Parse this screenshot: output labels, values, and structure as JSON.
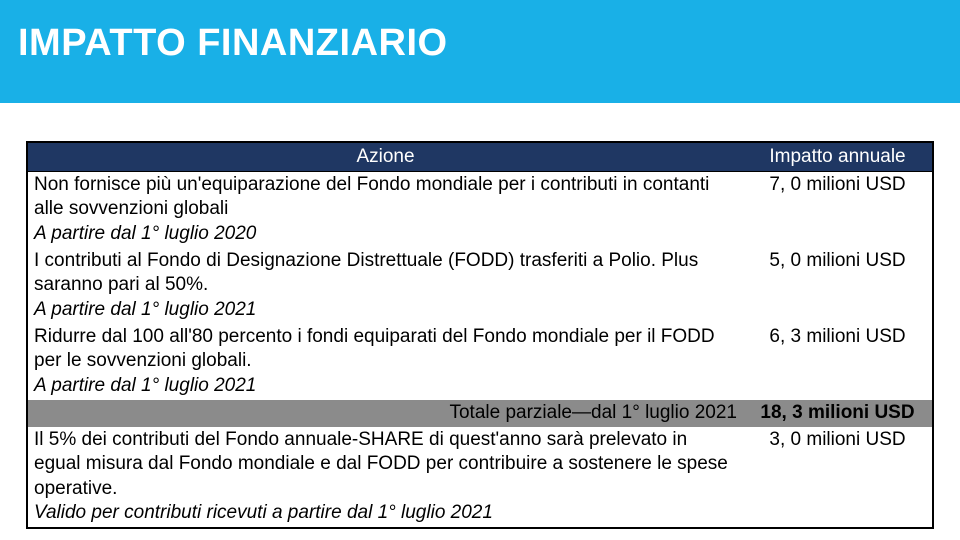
{
  "colors": {
    "header_band_bg": "#19b0e7",
    "title_text": "#ffffff",
    "table_header_bg": "#1f3763",
    "table_header_text": "#ffffff",
    "subtotal_bg": "#8b8b8b"
  },
  "title": "IMPATTO FINANZIARIO",
  "table": {
    "columns": [
      "Azione",
      "Impatto annuale"
    ],
    "rows": [
      {
        "action": "Non fornisce più un'equiparazione del Fondo mondiale per i contributi in contanti alle sovvenzioni globali",
        "note": "A partire dal 1° luglio 2020",
        "impact": "7, 0 milioni USD"
      },
      {
        "action": "I contributi al Fondo di Designazione Distrettuale (FODD) trasferiti a Polio. Plus saranno pari al 50%.",
        "note": "A partire dal 1° luglio 2021",
        "impact": "5, 0 milioni USD"
      },
      {
        "action": "Ridurre dal 100 all'80 percento i fondi equiparati del Fondo mondiale per il FODD per le sovvenzioni globali.",
        "note": "A partire dal 1° luglio 2021",
        "impact": "6, 3 milioni USD"
      }
    ],
    "subtotal": {
      "label": "Totale parziale—dal 1° luglio 2021",
      "impact": "18, 3 milioni USD"
    },
    "after_subtotal": [
      {
        "action": "Il 5% dei contributi del Fondo annuale-SHARE di quest'anno sarà prelevato in egual misura dal Fondo mondiale e dal FODD per contribuire a sostenere le spese operative.",
        "note": "Valido per contributi ricevuti a partire dal 1° luglio 2021",
        "impact": "3, 0 milioni USD"
      }
    ]
  }
}
